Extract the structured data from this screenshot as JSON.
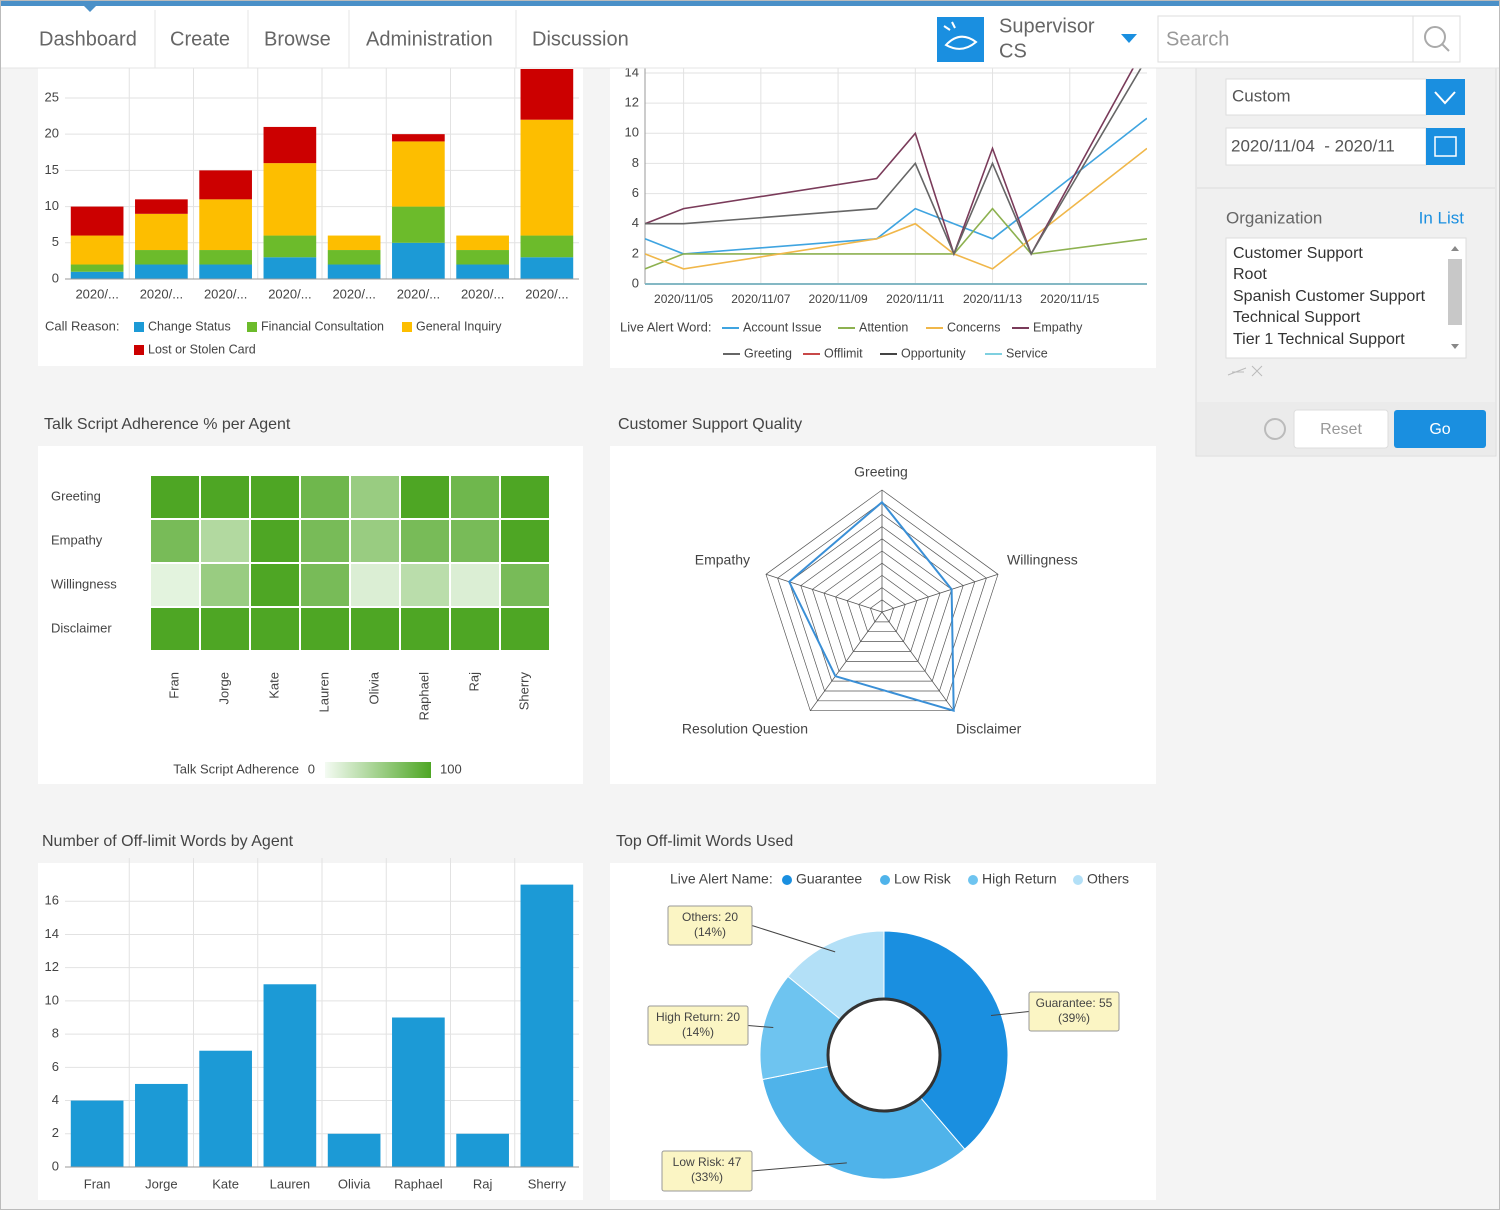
{
  "nav": {
    "items": [
      "Dashboard",
      "Create",
      "Browse",
      "Administration",
      "Discussion"
    ],
    "user": [
      "Supervisor",
      "CS"
    ],
    "search": "Search"
  },
  "sidebar": {
    "period": "Custom",
    "date_range": "2020/11/04  - 2020/11",
    "organization": "Organization",
    "in_list": "In List",
    "org_list": [
      "Customer Support",
      "Root",
      "Spanish Customer Support",
      "Technical Support",
      "Tier 1 Technical Support"
    ],
    "reset": "Reset",
    "go": "Go"
  },
  "chart_data": [
    {
      "type": "bar",
      "stacked": true,
      "grid": true,
      "legend_title": "Call Reason:",
      "categories": [
        "2020/...",
        "2020/...",
        "2020/...",
        "2020/...",
        "2020/...",
        "2020/...",
        "2020/...",
        "2020/..."
      ],
      "series": [
        {
          "name": "Change Status",
          "color": "#1c9ad6",
          "values": [
            1,
            2,
            2,
            3,
            2,
            5,
            2,
            3
          ]
        },
        {
          "name": "Financial Consultation",
          "color": "#6cbb2b",
          "values": [
            1,
            2,
            2,
            3,
            2,
            5,
            2,
            3
          ]
        },
        {
          "name": "General Inquiry",
          "color": "#fdbe00",
          "values": [
            4,
            5,
            7,
            10,
            2,
            9,
            2,
            16
          ]
        },
        {
          "name": "Lost or Stolen Card",
          "color": "#cc0000",
          "values": [
            4,
            2,
            4,
            5,
            0,
            1,
            0,
            7
          ]
        }
      ],
      "ylim": [
        0,
        29
      ],
      "yticks": [
        0,
        5,
        10,
        15,
        20,
        25
      ]
    },
    {
      "type": "line",
      "grid": true,
      "legend_title": "Live Alert Word:",
      "x": [
        "2020/11/04",
        "2020/11/05",
        "2020/11/10",
        "2020/11/11",
        "2020/11/12",
        "2020/11/13",
        "2020/11/14",
        "2020/11/17"
      ],
      "xlim": [
        "2020/11/04",
        "2020/11/17"
      ],
      "xticks": [
        "2020/11/05",
        "2020/11/07",
        "2020/11/09",
        "2020/11/11",
        "2020/11/13",
        "2020/11/15"
      ],
      "ylim": [
        0,
        14
      ],
      "yticks": [
        0,
        2,
        4,
        6,
        8,
        10,
        12,
        14
      ],
      "series": [
        {
          "name": "Account Issue",
          "color": "#3fa4e0",
          "values": [
            3,
            2,
            3,
            5,
            4,
            3,
            5,
            11
          ]
        },
        {
          "name": "Attention",
          "color": "#8db150",
          "values": [
            1,
            2,
            2,
            2,
            2,
            5,
            2,
            3
          ]
        },
        {
          "name": "Concerns",
          "color": "#f0b74a",
          "values": [
            2,
            1,
            3,
            4,
            2,
            1,
            3,
            9
          ]
        },
        {
          "name": "Empathy",
          "color": "#7a3b5a",
          "values": [
            4,
            5,
            7,
            10,
            2,
            9,
            2,
            16
          ]
        },
        {
          "name": "Greeting",
          "color": "#666666",
          "values": [
            4,
            4,
            5,
            8,
            2,
            8,
            2,
            15
          ]
        },
        {
          "name": "Offlimit",
          "color": "#c84848",
          "values": [
            0,
            0,
            0,
            0,
            0,
            0,
            0,
            0
          ]
        },
        {
          "name": "Opportunity",
          "color": "#444444",
          "values": [
            0,
            0,
            0,
            0,
            0,
            0,
            0,
            0
          ]
        },
        {
          "name": "Service",
          "color": "#7fd0e0",
          "values": [
            0,
            0,
            0,
            0,
            0,
            0,
            0,
            0
          ]
        }
      ]
    },
    {
      "type": "heatmap",
      "title": "Talk Script Adherence % per Agent",
      "rows": [
        "Greeting",
        "Empathy",
        "Willingness",
        "Disclaimer"
      ],
      "columns": [
        "Fran",
        "Jorge",
        "Kate",
        "Lauren",
        "Olivia",
        "Raphael",
        "Raj",
        "Sherry"
      ],
      "values": [
        [
          100,
          100,
          100,
          80,
          55,
          100,
          80,
          100
        ],
        [
          75,
          40,
          100,
          75,
          55,
          75,
          75,
          100
        ],
        [
          10,
          55,
          100,
          75,
          15,
          35,
          15,
          75
        ],
        [
          100,
          100,
          100,
          100,
          100,
          100,
          100,
          100
        ]
      ],
      "zlim": [
        0,
        100
      ],
      "color_range": [
        "#f4fbf3",
        "#4ea624"
      ],
      "colorbar_label": "Talk Script Adherence",
      "colorbar_ticks": [
        0,
        100
      ]
    },
    {
      "type": "radar",
      "title": "Customer Support Quality",
      "color": "#3a8fd6",
      "axes": [
        "Greeting",
        "Willingness",
        "Disclaimer",
        "Resolution Question",
        "Empathy"
      ],
      "values": [
        90,
        60,
        100,
        65,
        80
      ],
      "rlim": [
        0,
        100
      ],
      "rticks": [
        10,
        20,
        30,
        40,
        50,
        60,
        70,
        80,
        90,
        100
      ]
    },
    {
      "type": "bar",
      "grid": true,
      "title": "Number of Off-limit Words by Agent",
      "color": "#1c9ad6",
      "categories": [
        "Fran",
        "Jorge",
        "Kate",
        "Lauren",
        "Olivia",
        "Raphael",
        "Raj",
        "Sherry"
      ],
      "values": [
        4,
        5,
        7,
        11,
        2,
        9,
        2,
        17
      ],
      "ylim": [
        0,
        18
      ],
      "yticks": [
        0,
        2,
        4,
        6,
        8,
        10,
        12,
        14,
        16
      ]
    },
    {
      "type": "donut",
      "title": "Top Off-limit Words Used",
      "legend_title": "Live Alert Name:",
      "categories": [
        "Guarantee",
        "Low Risk",
        "High Return",
        "Others"
      ],
      "values": [
        55,
        47,
        20,
        20
      ],
      "value_labels": [
        "Guarantee: 55",
        "Low Risk: 47",
        "High Return: 20",
        "Others: 20"
      ],
      "percent_labels": [
        "(39%)",
        "(33%)",
        "(14%)",
        "(14%)"
      ],
      "colors": [
        "#1a8fe0",
        "#4fb3ea",
        "#6ec4f0",
        "#b3e0f7"
      ]
    }
  ]
}
